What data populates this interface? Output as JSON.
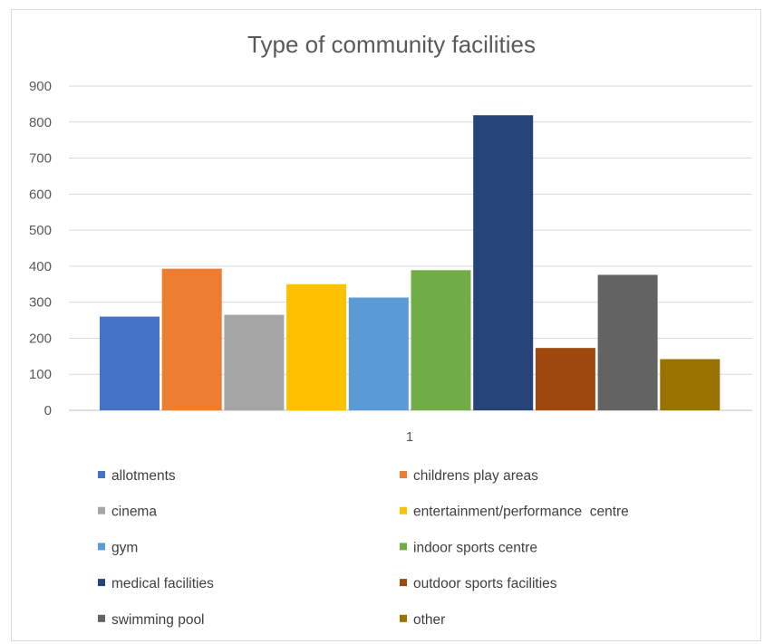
{
  "chart_data": {
    "type": "bar",
    "title": "Type of community facilities",
    "categories": [
      "1"
    ],
    "ylim": [
      0,
      900
    ],
    "yticks": [
      0,
      100,
      200,
      300,
      400,
      500,
      600,
      700,
      800,
      900
    ],
    "grid": true,
    "legend_position": "bottom",
    "series": [
      {
        "name": "allotments",
        "values": [
          260
        ],
        "color": "#4472C4"
      },
      {
        "name": "childrens play areas",
        "values": [
          393
        ],
        "color": "#ED7D31"
      },
      {
        "name": "cinema",
        "values": [
          265
        ],
        "color": "#A5A5A5"
      },
      {
        "name": "entertainment/performance  centre",
        "values": [
          350
        ],
        "color": "#FFC000"
      },
      {
        "name": "gym",
        "values": [
          313
        ],
        "color": "#5B9BD5"
      },
      {
        "name": "indoor sports centre",
        "values": [
          389
        ],
        "color": "#70AD47"
      },
      {
        "name": "medical facilities",
        "values": [
          819
        ],
        "color": "#264478"
      },
      {
        "name": "outdoor sports facilities",
        "values": [
          173
        ],
        "color": "#9E480E"
      },
      {
        "name": "swimming pool",
        "values": [
          376
        ],
        "color": "#636363"
      },
      {
        "name": "other",
        "values": [
          142
        ],
        "color": "#997300"
      }
    ]
  }
}
